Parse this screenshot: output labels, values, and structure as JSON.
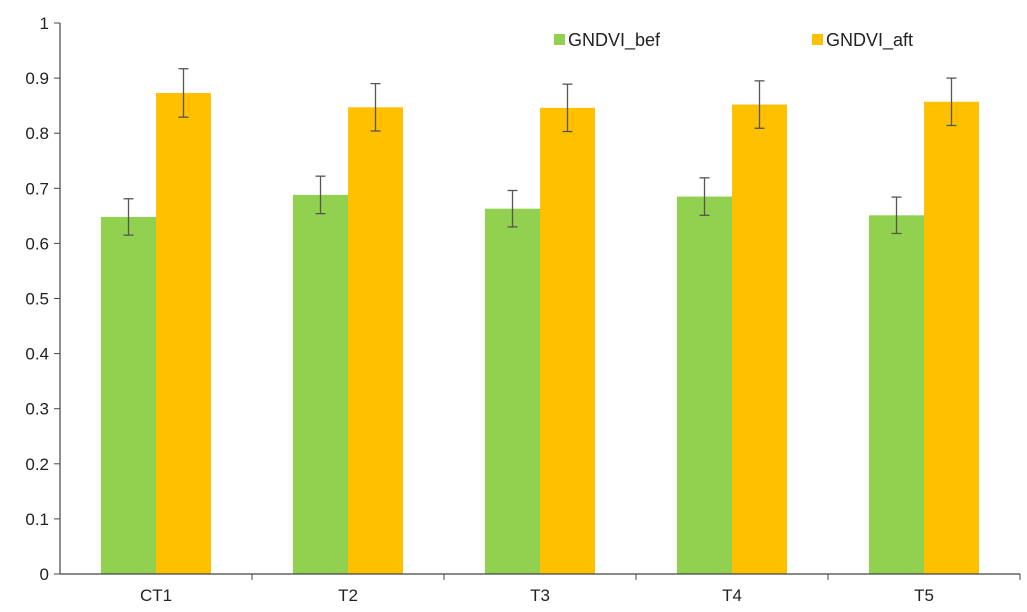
{
  "chart_data": {
    "type": "bar",
    "categories": [
      "CT1",
      "T2",
      "T3",
      "T4",
      "T5"
    ],
    "series": [
      {
        "name": "GNDVI_bef",
        "color": "#92d050",
        "values": [
          0.648,
          0.688,
          0.663,
          0.685,
          0.651
        ],
        "errors": [
          0.033,
          0.034,
          0.033,
          0.034,
          0.033
        ]
      },
      {
        "name": "GNDVI_aft",
        "color": "#ffc000",
        "values": [
          0.873,
          0.847,
          0.846,
          0.852,
          0.857
        ],
        "errors": [
          0.044,
          0.043,
          0.043,
          0.043,
          0.043
        ]
      }
    ],
    "ylim": [
      0,
      1
    ],
    "yticks": [
      0,
      0.1,
      0.2,
      0.3,
      0.4,
      0.5,
      0.6,
      0.7,
      0.8,
      0.9,
      1
    ],
    "ytick_labels": [
      "0",
      "0.1",
      "0.2",
      "0.3",
      "0.4",
      "0.5",
      "0.6",
      "0.7",
      "0.8",
      "0.9",
      "1"
    ],
    "title": "",
    "xlabel": "",
    "ylabel": "",
    "grid": false,
    "legend_position": "top-right"
  }
}
